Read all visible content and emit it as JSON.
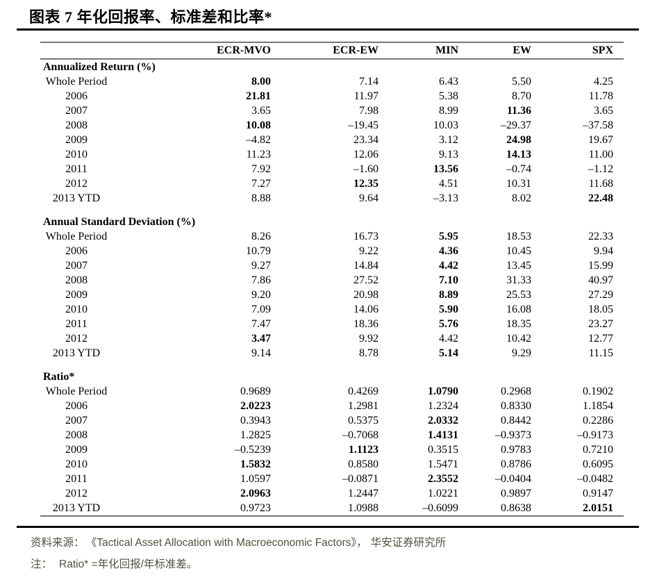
{
  "title": "图表 7 年化回报率、标准差和比率*",
  "chart_data": {
    "type": "table",
    "columns": [
      "ECR-MVO",
      "ECR-EW",
      "MIN",
      "EW",
      "SPX"
    ],
    "sections": [
      {
        "header": "Annualized Return (%)",
        "rows": [
          {
            "label": "Whole Period",
            "values": [
              "8.00",
              "7.14",
              "6.43",
              "5.50",
              "4.25"
            ],
            "bold": [
              0
            ]
          },
          {
            "label": "2006",
            "values": [
              "21.81",
              "11.97",
              "5.38",
              "8.70",
              "11.78"
            ],
            "bold": [
              0
            ]
          },
          {
            "label": "2007",
            "values": [
              "3.65",
              "7.98",
              "8.99",
              "11.36",
              "3.65"
            ],
            "bold": [
              3
            ]
          },
          {
            "label": "2008",
            "values": [
              "10.08",
              "–19.45",
              "10.03",
              "–29.37",
              "–37.58"
            ],
            "bold": [
              0
            ]
          },
          {
            "label": "2009",
            "values": [
              "–4.82",
              "23.34",
              "3.12",
              "24.98",
              "19.67"
            ],
            "bold": [
              3
            ]
          },
          {
            "label": "2010",
            "values": [
              "11.23",
              "12.06",
              "9.13",
              "14.13",
              "11.00"
            ],
            "bold": [
              3
            ]
          },
          {
            "label": "2011",
            "values": [
              "7.92",
              "–1.60",
              "13.56",
              "–0.74",
              "–1.12"
            ],
            "bold": [
              2
            ]
          },
          {
            "label": "2012",
            "values": [
              "7.27",
              "12.35",
              "4.51",
              "10.31",
              "11.68"
            ],
            "bold": [
              1
            ]
          },
          {
            "label": "2013 YTD",
            "values": [
              "8.88",
              "9.64",
              "–3.13",
              "8.02",
              "22.48"
            ],
            "bold": [
              4
            ]
          }
        ]
      },
      {
        "header": "Annual Standard Deviation (%)",
        "rows": [
          {
            "label": "Whole Period",
            "values": [
              "8.26",
              "16.73",
              "5.95",
              "18.53",
              "22.33"
            ],
            "bold": [
              2
            ]
          },
          {
            "label": "2006",
            "values": [
              "10.79",
              "9.22",
              "4.36",
              "10.45",
              "9.94"
            ],
            "bold": [
              2
            ]
          },
          {
            "label": "2007",
            "values": [
              "9.27",
              "14.84",
              "4.42",
              "13.45",
              "15.99"
            ],
            "bold": [
              2
            ]
          },
          {
            "label": "2008",
            "values": [
              "7.86",
              "27.52",
              "7.10",
              "31.33",
              "40.97"
            ],
            "bold": [
              2
            ]
          },
          {
            "label": "2009",
            "values": [
              "9.20",
              "20.98",
              "8.89",
              "25.53",
              "27.29"
            ],
            "bold": [
              2
            ]
          },
          {
            "label": "2010",
            "values": [
              "7.09",
              "14.06",
              "5.90",
              "16.08",
              "18.05"
            ],
            "bold": [
              2
            ]
          },
          {
            "label": "2011",
            "values": [
              "7.47",
              "18.36",
              "5.76",
              "18.35",
              "23.27"
            ],
            "bold": [
              2
            ]
          },
          {
            "label": "2012",
            "values": [
              "3.47",
              "9.92",
              "4.42",
              "10.42",
              "12.77"
            ],
            "bold": [
              0
            ]
          },
          {
            "label": "2013 YTD",
            "values": [
              "9.14",
              "8.78",
              "5.14",
              "9.29",
              "11.15"
            ],
            "bold": [
              2
            ]
          }
        ]
      },
      {
        "header": "Ratio*",
        "rows": [
          {
            "label": "Whole Period",
            "values": [
              "0.9689",
              "0.4269",
              "1.0790",
              "0.2968",
              "0.1902"
            ],
            "bold": [
              2
            ]
          },
          {
            "label": "2006",
            "values": [
              "2.0223",
              "1.2981",
              "1.2324",
              "0.8330",
              "1.1854"
            ],
            "bold": [
              0
            ]
          },
          {
            "label": "2007",
            "values": [
              "0.3943",
              "0.5375",
              "2.0332",
              "0.8442",
              "0.2286"
            ],
            "bold": [
              2
            ]
          },
          {
            "label": "2008",
            "values": [
              "1.2825",
              "–0.7068",
              "1.4131",
              "–0.9373",
              "–0.9173"
            ],
            "bold": [
              2
            ]
          },
          {
            "label": "2009",
            "values": [
              "–0.5239",
              "1.1123",
              "0.3515",
              "0.9783",
              "0.7210"
            ],
            "bold": [
              1
            ]
          },
          {
            "label": "2010",
            "values": [
              "1.5832",
              "0.8580",
              "1.5471",
              "0.8786",
              "0.6095"
            ],
            "bold": [
              0
            ]
          },
          {
            "label": "2011",
            "values": [
              "1.0597",
              "–0.0871",
              "2.3552",
              "–0.0404",
              "–0.0482"
            ],
            "bold": [
              2
            ]
          },
          {
            "label": "2012",
            "values": [
              "2.0963",
              "1.2447",
              "1.0221",
              "0.9897",
              "0.9147"
            ],
            "bold": [
              0
            ]
          },
          {
            "label": "2013 YTD",
            "values": [
              "0.9723",
              "1.0988",
              "–0.6099",
              "0.8638",
              "2.0151"
            ],
            "bold": [
              4
            ]
          }
        ]
      }
    ]
  },
  "footer": {
    "source_label": "资料来源：",
    "source_text": "《Tactical Asset Allocation with Macroeconomic Factors》，",
    "source_org": "华安证券研究所",
    "note_label": "注：",
    "note_text": "Ratio* =年化回报/年标准差。"
  },
  "colors": {
    "rule_black": "#000000",
    "rule_gray_dark": "#3c3c3c",
    "rule_gray_light": "#b0b0b0",
    "footer_text": "#51503e",
    "text": "#000000",
    "background": "#ffffff"
  }
}
